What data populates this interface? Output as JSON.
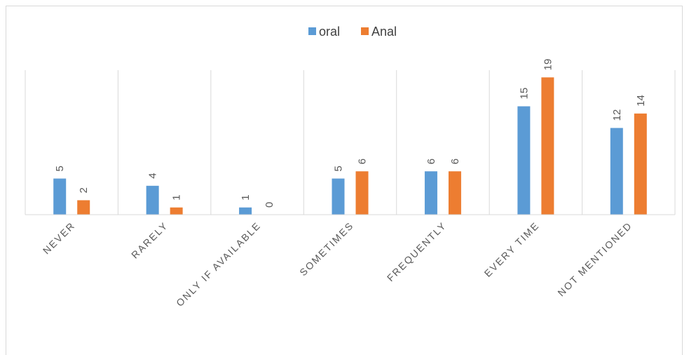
{
  "chart_data": {
    "type": "bar",
    "title": "",
    "xlabel": "",
    "ylabel": "",
    "categories": [
      "NEVER",
      "RARELY",
      "ONLY IF AVAILABLE",
      "SOMETIMES",
      "FREQUENTLY",
      "EVERY TIME",
      "NOT MENTIONED"
    ],
    "series": [
      {
        "name": "oral",
        "values": [
          5,
          4,
          1,
          5,
          6,
          15,
          12
        ],
        "color": "#5b9bd5"
      },
      {
        "name": "Anal",
        "values": [
          2,
          1,
          0,
          6,
          6,
          19,
          14
        ],
        "color": "#ed7d31"
      }
    ],
    "ylim": [
      0,
      20
    ],
    "legend_position": "top-center",
    "data_labels": true,
    "grid": "vertical category separators"
  }
}
